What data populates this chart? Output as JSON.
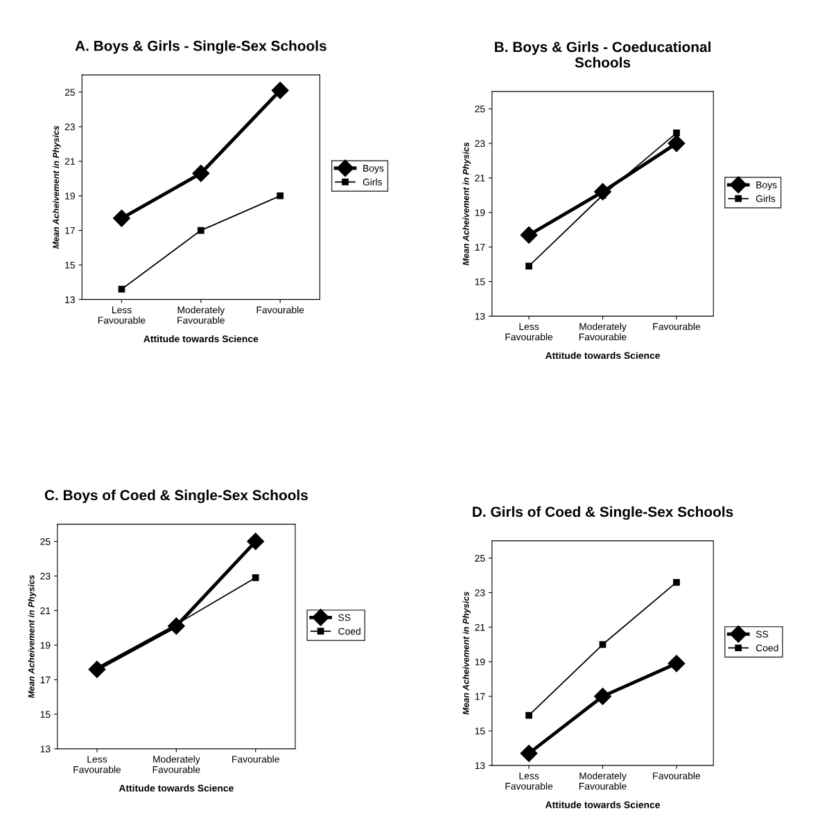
{
  "chart_data": [
    {
      "type": "line",
      "title": "A. Boys & Girls - Single-Sex Schools",
      "xlabel": "Attitude towards Science",
      "ylabel": "Mean Acheivement in Physics",
      "categories": [
        "Less\nFavourable",
        "Moderately\nFavourable",
        "Favourable"
      ],
      "ylim": [
        13,
        26
      ],
      "yticks": [
        13,
        15,
        17,
        19,
        21,
        23,
        25
      ],
      "legend": "right",
      "grid": false,
      "series": [
        {
          "name": "Boys",
          "color": "#000000",
          "marker": "diamond",
          "values": [
            17.7,
            20.3,
            25.1
          ]
        },
        {
          "name": "Girls",
          "color": "#000000",
          "marker": "square",
          "values": [
            13.6,
            17.0,
            19.0
          ]
        }
      ]
    },
    {
      "type": "line",
      "title": "B. Boys & Girls - Coeducational\nSchools",
      "xlabel": "Attitude towards Science",
      "ylabel": "Mean Acheivement in Physics",
      "categories": [
        "Less\nFavourable",
        "Moderately\nFavourable",
        "Favourable"
      ],
      "ylim": [
        13,
        26
      ],
      "yticks": [
        13,
        15,
        17,
        19,
        21,
        23,
        25
      ],
      "legend": "right",
      "grid": false,
      "series": [
        {
          "name": "Boys",
          "color": "#000000",
          "marker": "diamond",
          "values": [
            17.7,
            20.2,
            23.0
          ]
        },
        {
          "name": "Girls",
          "color": "#000000",
          "marker": "square",
          "values": [
            15.9,
            20.0,
            23.6
          ]
        }
      ]
    },
    {
      "type": "line",
      "title": "C. Boys of Coed & Single-Sex Schools",
      "xlabel": "Attitude towards Science",
      "ylabel": "Mean Acheivement in Physics",
      "categories": [
        "Less\nFavourable",
        "Moderately\nFavourable",
        "Favourable"
      ],
      "ylim": [
        13,
        26
      ],
      "yticks": [
        13,
        15,
        17,
        19,
        21,
        23,
        25
      ],
      "legend": "right",
      "grid": false,
      "series": [
        {
          "name": "SS",
          "color": "#000000",
          "marker": "diamond",
          "values": [
            17.6,
            20.1,
            25.0
          ]
        },
        {
          "name": "Coed",
          "color": "#000000",
          "marker": "square",
          "values": [
            17.7,
            20.2,
            22.9
          ]
        }
      ]
    },
    {
      "type": "line",
      "title": "D. Girls of Coed & Single-Sex Schools",
      "xlabel": "Attitude towards Science",
      "ylabel": "Mean Acheivement in Physics",
      "categories": [
        "Less\nFavourable",
        "Moderately\nFavourable",
        "Favourable"
      ],
      "ylim": [
        13,
        26
      ],
      "yticks": [
        13,
        15,
        17,
        19,
        21,
        23,
        25
      ],
      "legend": "right",
      "grid": false,
      "series": [
        {
          "name": "SS",
          "color": "#000000",
          "marker": "diamond",
          "values": [
            13.7,
            17.0,
            18.9
          ]
        },
        {
          "name": "Coed",
          "color": "#000000",
          "marker": "square",
          "values": [
            15.9,
            20.0,
            23.6
          ]
        }
      ]
    }
  ]
}
